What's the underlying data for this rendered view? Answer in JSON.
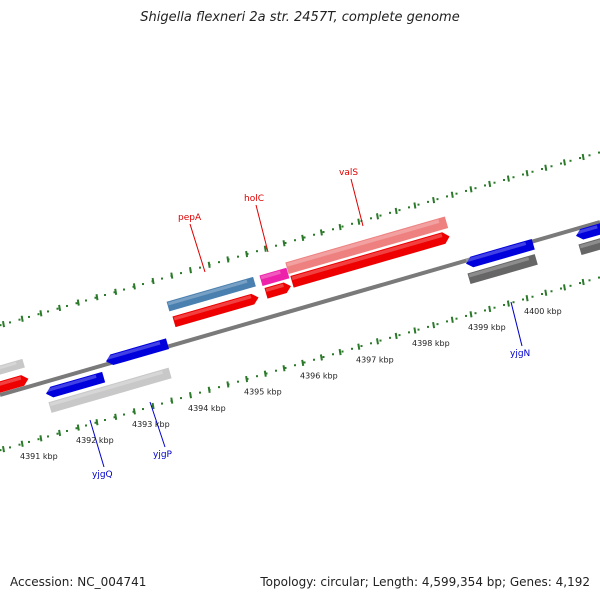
{
  "title": "Shigella flexneri 2a str. 2457T, complete genome",
  "footer": {
    "accession": "Accession: NC_004741",
    "summary": "Topology: circular; Length: 4,599,354 bp; Genes: 4,192"
  },
  "scale": {
    "unit": "kbp",
    "ticks": [
      {
        "kbp": 4391,
        "label": "4391 kbp"
      },
      {
        "kbp": 4392,
        "label": "4392 kbp"
      },
      {
        "kbp": 4393,
        "label": "4393 kbp"
      },
      {
        "kbp": 4394,
        "label": "4394 kbp"
      },
      {
        "kbp": 4395,
        "label": "4395 kbp"
      },
      {
        "kbp": 4396,
        "label": "4396 kbp"
      },
      {
        "kbp": 4397,
        "label": "4397 kbp"
      },
      {
        "kbp": 4398,
        "label": "4398 kbp"
      },
      {
        "kbp": 4399,
        "label": "4399 kbp"
      },
      {
        "kbp": 4400,
        "label": "4400 kbp"
      }
    ]
  },
  "colors": {
    "backbone": "#7a7a7a",
    "tick_major": "#2a7a2a",
    "tick_minor": "#2a7a2a",
    "forward_cds": "#ee0000",
    "reverse_cds": "#0000dd",
    "pepA_feature": "#4a80b0",
    "holC_feature": "#ee22aa",
    "valS_feature": "#ee8080",
    "light_gray": "#c8c8c8",
    "dark_gray": "#666666",
    "label_top": "#dd0000",
    "label_bottom": "#0000cc"
  },
  "genes": [
    {
      "name": "pepA",
      "strand": "forward"
    },
    {
      "name": "holC",
      "strand": "forward"
    },
    {
      "name": "valS",
      "strand": "forward"
    },
    {
      "name": "yjgN",
      "strand": "reverse"
    },
    {
      "name": "yjgP",
      "strand": "reverse"
    },
    {
      "name": "yjgQ",
      "strand": "reverse"
    }
  ]
}
